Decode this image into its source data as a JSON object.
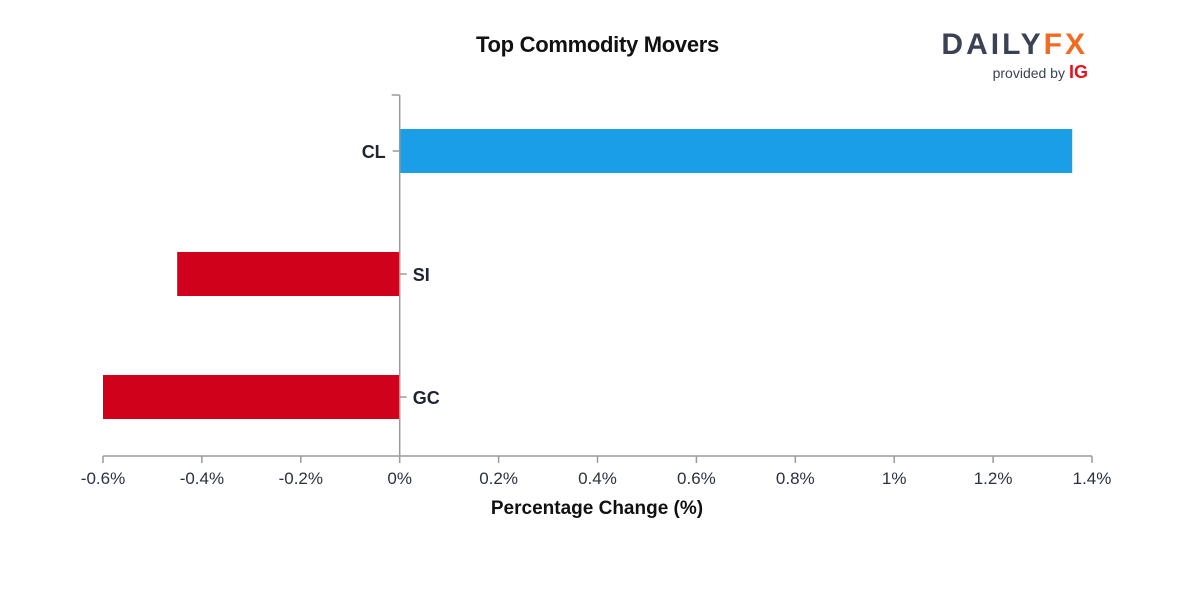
{
  "brand": {
    "word_main": "DAILY",
    "word_accent": "FX",
    "provided_by": "provided by",
    "provider": "IG"
  },
  "colors": {
    "positive": "#1a9fe6",
    "negative": "#d0021b",
    "axis": "#9a9a9a"
  },
  "chart_data": {
    "type": "bar",
    "orientation": "horizontal",
    "title": "Top Commodity Movers",
    "xlabel": "Percentage Change (%)",
    "ylabel": "",
    "categories": [
      "CL",
      "SI",
      "GC"
    ],
    "values": [
      1.36,
      -0.45,
      -0.6
    ],
    "xlim": [
      -0.6,
      1.4
    ],
    "xticks": [
      -0.6,
      -0.4,
      -0.2,
      0,
      0.2,
      0.4,
      0.6,
      0.8,
      1,
      1.2,
      1.4
    ],
    "xtick_labels": [
      "-0.6%",
      "-0.4%",
      "-0.2%",
      "0%",
      "0.2%",
      "0.4%",
      "0.6%",
      "0.8%",
      "1%",
      "1.2%",
      "1.4%"
    ],
    "grid": false,
    "legend": "none"
  }
}
